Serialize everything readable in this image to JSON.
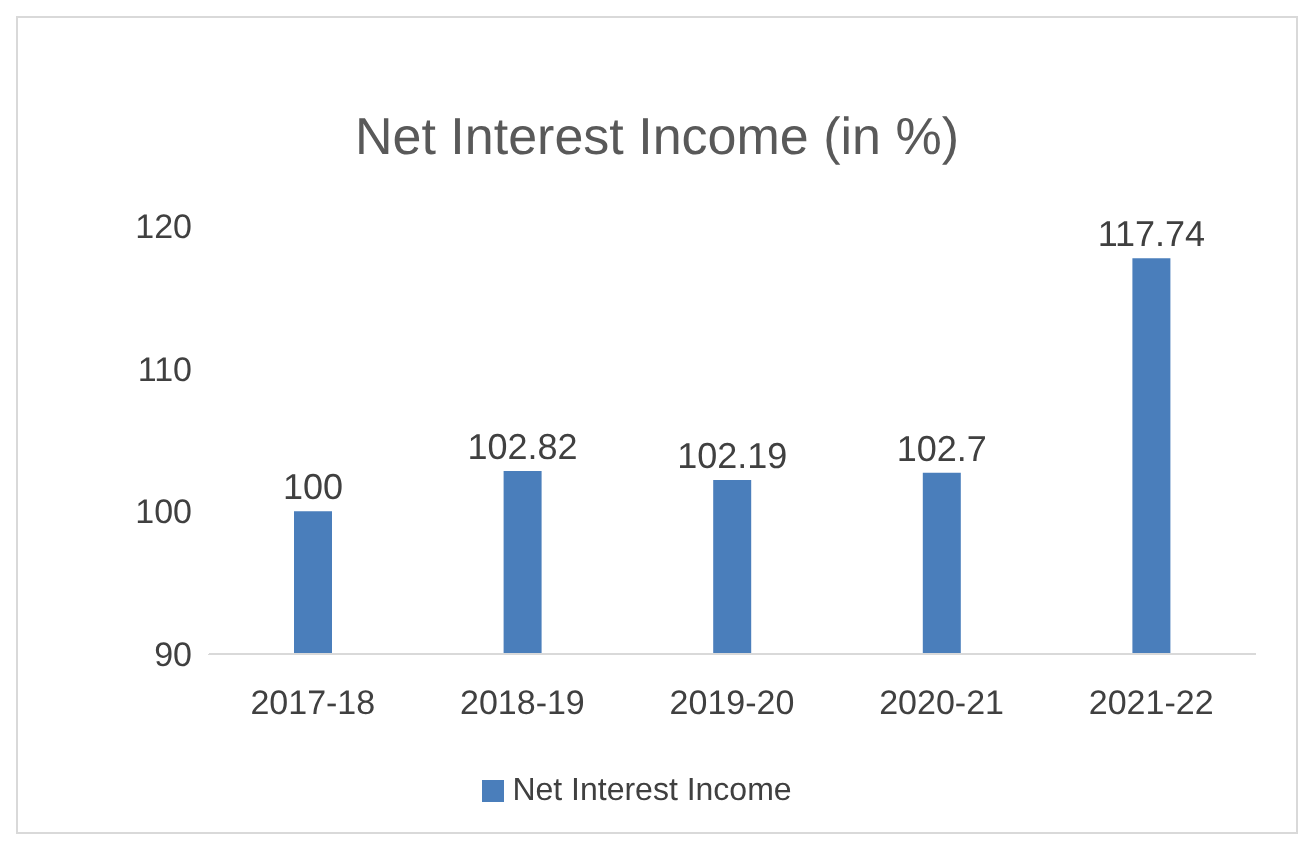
{
  "chart_data": {
    "type": "bar",
    "title": "Net Interest Income (in %)",
    "categories": [
      "2017-18",
      "2018-19",
      "2019-20",
      "2020-21",
      "2021-22"
    ],
    "series": [
      {
        "name": "Net Interest Income",
        "color": "#4a7ebb",
        "values": [
          100,
          102.82,
          102.19,
          102.7,
          117.74
        ]
      }
    ],
    "ylim": [
      90,
      120
    ],
    "yticks": [
      90,
      100,
      110,
      120
    ],
    "grid": false,
    "legend": "bottom",
    "data_labels": true
  }
}
